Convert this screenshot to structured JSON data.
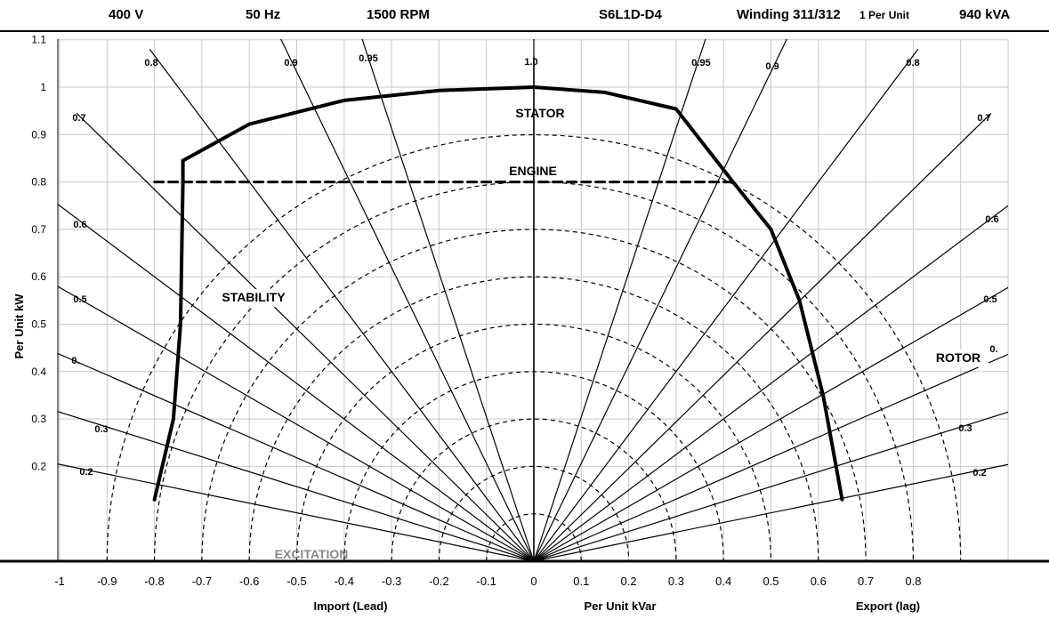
{
  "header": {
    "voltage": "400 V",
    "frequency": "50 Hz",
    "speed": "1500 RPM",
    "model": "S6L1D-D4",
    "winding": "Winding 311/312",
    "per_unit": "1 Per Unit",
    "rating": "940 kVA"
  },
  "chart_data": {
    "type": "line",
    "title": "",
    "xlabel": "Per Unit kVar",
    "xlabel_left": "Import (Lead)",
    "xlabel_right": "Export (lag)",
    "ylabel": "Per Unit kW",
    "xlim": [
      -1.0,
      0.8
    ],
    "ylim": [
      0,
      1.1
    ],
    "x_ticks": [
      -1,
      -0.9,
      -0.8,
      -0.7,
      -0.6,
      -0.5,
      -0.4,
      -0.3,
      -0.2,
      -0.1,
      0,
      0.1,
      0.2,
      0.3,
      0.4,
      0.5,
      0.6,
      0.7,
      0.8
    ],
    "x_tick_labels": [
      "-1",
      "-0.9",
      "-0.8",
      "-0.7",
      "-0.6",
      "-0.5",
      "-0.4",
      "-0.3",
      "-0.2",
      "-0.1",
      "0",
      "0.1",
      "0.2",
      "0.3",
      "0.4",
      "0.5",
      "0.6",
      "0.7",
      "0.8"
    ],
    "y_ticks": [
      0.2,
      0.3,
      0.4,
      0.5,
      0.6,
      0.7,
      0.8,
      0.9,
      1,
      1.1
    ],
    "y_tick_labels": [
      "0.2",
      "0.3",
      "0.4",
      "0.5",
      "0.6",
      "0.7",
      "0.8",
      "0.9",
      "1",
      "1.1"
    ],
    "grid": true,
    "power_factor_lines": [
      0.2,
      0.3,
      0.4,
      0.5,
      0.6,
      0.7,
      0.8,
      0.9,
      0.95,
      1.0
    ],
    "power_factor_labels_left": [
      "0.8",
      "0.9",
      "0.95",
      "0.7",
      "0.6",
      "0.5",
      "0.",
      "0.3",
      "0.2"
    ],
    "power_factor_labels_right": [
      "1.0",
      "0.95",
      "0.9",
      "0.8",
      "0.7",
      "0.6",
      "0.5",
      "0.",
      "0.3",
      "0.2"
    ],
    "pu_circles": [
      0.1,
      0.2,
      0.3,
      0.4,
      0.5,
      0.6,
      0.7,
      0.8,
      0.9
    ],
    "series": [
      {
        "name": "STATOR",
        "points": [
          [
            -0.74,
            0.845
          ],
          [
            -0.6,
            0.922
          ],
          [
            -0.4,
            0.972
          ],
          [
            -0.2,
            0.993
          ],
          [
            0.0,
            1.0
          ],
          [
            0.15,
            0.989
          ],
          [
            0.3,
            0.954
          ],
          [
            0.42,
            0.8
          ]
        ]
      },
      {
        "name": "ENGINE",
        "points": [
          [
            -0.8,
            0.8
          ],
          [
            0.42,
            0.8
          ]
        ]
      },
      {
        "name": "STABILITY",
        "points": [
          [
            -0.74,
            0.845
          ],
          [
            -0.74,
            0.8
          ],
          [
            -0.745,
            0.5
          ],
          [
            -0.76,
            0.3
          ],
          [
            -0.8,
            0.13
          ]
        ]
      },
      {
        "name": "ROTOR",
        "points": [
          [
            0.42,
            0.8
          ],
          [
            0.5,
            0.7
          ],
          [
            0.56,
            0.55
          ],
          [
            0.61,
            0.35
          ],
          [
            0.65,
            0.13
          ]
        ]
      }
    ],
    "annotations": [
      "STATOR",
      "ENGINE",
      "STABILITY",
      "ROTOR",
      "EXCITATION"
    ]
  }
}
